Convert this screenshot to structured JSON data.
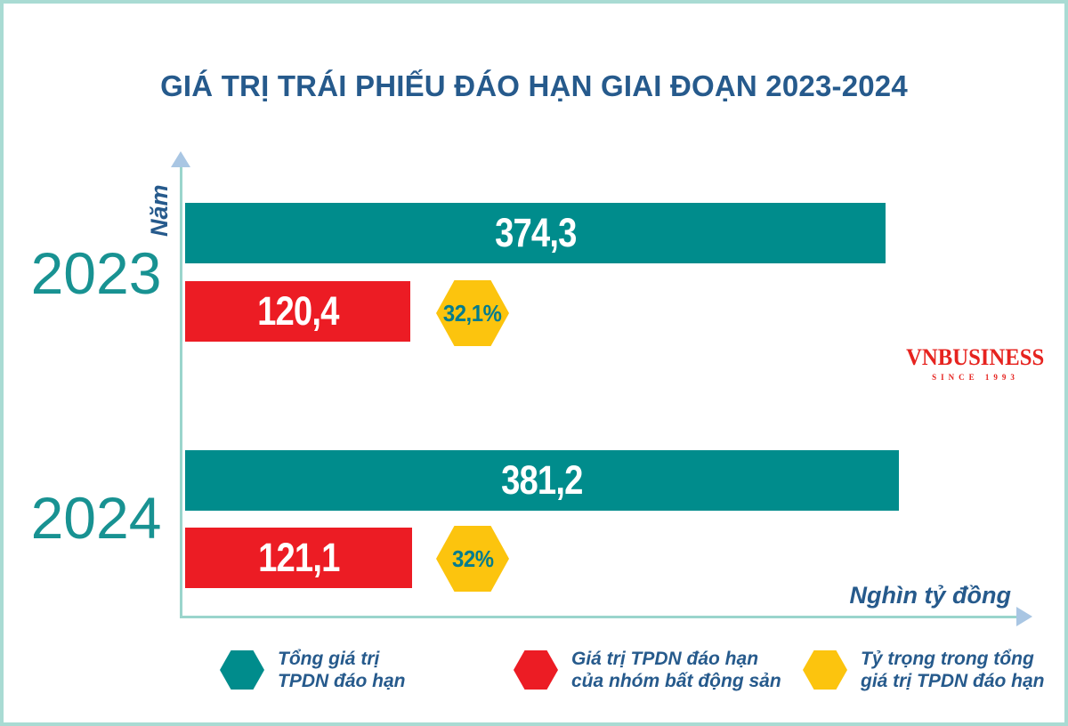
{
  "title": "GIÁ TRỊ TRÁI PHIẾU ĐÁO HẠN GIAI ĐOẠN 2023-2024",
  "axes": {
    "y_label": "Năm",
    "x_label": "Nghìn tỷ đồng"
  },
  "watermark": {
    "name": "VNBUSINESS",
    "tagline": "SINCE 1993"
  },
  "colors": {
    "teal": "#008c8c",
    "red": "#ec1c24",
    "yellow": "#fcc40e",
    "blue_text": "#265a8c",
    "hex_badge_text": "#007c8f",
    "year_text": "#189292",
    "axis_line": "#9ad5cc",
    "axis_arrow": "#a9c6e3",
    "frame_border": "#a9dbd3",
    "logo_red": "#e6231f"
  },
  "chart_data": {
    "type": "bar",
    "orientation": "horizontal",
    "title": "GIÁ TRỊ TRÁI PHIẾU ĐÁO HẠN GIAI ĐOẠN 2023-2024",
    "xlabel": "Nghìn tỷ đồng",
    "ylabel": "Năm",
    "unit": "nghìn tỷ đồng",
    "categories": [
      "2023",
      "2024"
    ],
    "series": [
      {
        "name": "Tổng giá trị TPDN đáo hạn",
        "color": "#008c8c",
        "values": [
          374.3,
          381.2
        ]
      },
      {
        "name": "Giá trị TPDN đáo hạn của nhóm bất động sản",
        "color": "#ec1c24",
        "values": [
          120.4,
          121.1
        ]
      },
      {
        "name": "Tỷ trọng trong tổng giá trị TPDN đáo hạn",
        "color": "#fcc40e",
        "values_percent": [
          32.1,
          32.0
        ]
      }
    ],
    "groups": [
      {
        "year": "2023",
        "total": 374.3,
        "total_label": "374,3",
        "real_estate": 120.4,
        "real_estate_label": "120,4",
        "share_label": "32,1%"
      },
      {
        "year": "2024",
        "total": 381.2,
        "total_label": "381,2",
        "real_estate": 121.1,
        "real_estate_label": "121,1",
        "share_label": "32%"
      }
    ],
    "legend_position": "bottom",
    "grid": false
  },
  "legend": {
    "items": [
      {
        "color": "#008c8c",
        "line1": "Tổng giá trị",
        "line2": "TPDN đáo hạn"
      },
      {
        "color": "#ec1c24",
        "line1": "Giá trị TPDN đáo hạn",
        "line2": "của nhóm bất động sản"
      },
      {
        "color": "#fcc40e",
        "line1": "Tỷ trọng trong tổng",
        "line2": "giá trị TPDN đáo hạn"
      }
    ]
  }
}
